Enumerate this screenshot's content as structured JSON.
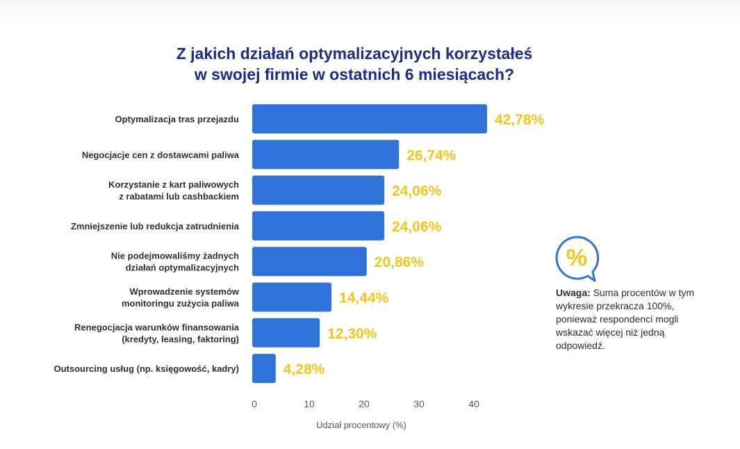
{
  "title": {
    "line1": "Z jakich działań optymalizacyjnych korzystałeś",
    "line2": "w swojej firmie w ostatnich 6 miesiącach?"
  },
  "chart_data": {
    "type": "bar",
    "orientation": "horizontal",
    "title": "Z jakich działań optymalizacyjnych korzystałeś w swojej firmie w ostatnich 6 miesiącach?",
    "xlabel": "Udział procentowy (%)",
    "ylabel": "",
    "xlim": [
      0,
      45
    ],
    "xticks": [
      0,
      10,
      20,
      30,
      40
    ],
    "categories": [
      [
        "Optymalizacja tras przejazdu"
      ],
      [
        "Negocjacje cen z dostawcami paliwa"
      ],
      [
        "Korzystanie z kart paliwowych",
        "z rabatami lub cashbackiem"
      ],
      [
        "Zmniejszenie lub redukcja zatrudnienia"
      ],
      [
        "Nie podejmowaliśmy żadnych",
        "działań optymalizacyjnych"
      ],
      [
        "Wprowadzenie systemów",
        "monitoringu zużycia paliwa"
      ],
      [
        "Renegocjacja warunków finansowania",
        "(kredyty, leasing, faktoring)"
      ],
      [
        "Outsourcing usług (np. księgowość, kadry)"
      ]
    ],
    "values": [
      42.78,
      26.74,
      24.06,
      24.06,
      20.86,
      14.44,
      12.3,
      4.28
    ],
    "value_labels": [
      "42,78%",
      "26,74%",
      "24,06%",
      "24,06%",
      "20,86%",
      "14,44%",
      "12,30%",
      "4,28%"
    ],
    "bar_color": "#2f72d9",
    "label_color": "#f5c518",
    "grid": false
  },
  "note": {
    "icon": "percent-speech-bubble-icon",
    "icon_glyph": "%",
    "bold": "Uwaga:",
    "text": "Suma procentów w tym wykresie przekracza 100%, ponieważ respondenci mogli wskazać więcej niż jedną odpowiedź."
  }
}
